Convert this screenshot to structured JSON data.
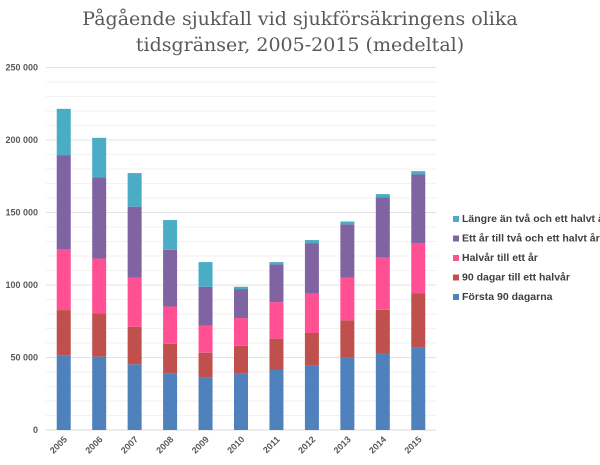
{
  "chart_data": {
    "type": "bar",
    "stacked": true,
    "title_lines": [
      "Pågående sjukfall vid sjukförsäkringens olika",
      "tidsgränser, 2005-2015 (medeltal)"
    ],
    "xlabel": "",
    "ylabel": "",
    "ylim": [
      0,
      250000
    ],
    "yticks": [
      0,
      50000,
      100000,
      150000,
      200000,
      250000
    ],
    "ytick_labels": [
      "0",
      "50 000",
      "100 000",
      "150 000",
      "200 000",
      "250 000"
    ],
    "grid": true,
    "legend_position": "right",
    "categories": [
      "2005",
      "2006",
      "2007",
      "2008",
      "2009",
      "2010",
      "2011",
      "2012",
      "2013",
      "2014",
      "2015"
    ],
    "series": [
      {
        "name": "Första 90 dagarna",
        "color": "#4f81bd",
        "values": [
          51200,
          50600,
          45300,
          38800,
          36100,
          38800,
          41400,
          44300,
          49900,
          53100,
          56800
        ]
      },
      {
        "name": "90 dagar till ett halvår",
        "color": "#c0504d",
        "values": [
          31500,
          29800,
          25900,
          20700,
          17200,
          19300,
          21600,
          22600,
          25700,
          29800,
          37600
        ]
      },
      {
        "name": "Halvår till ett år",
        "color": "#ff5093",
        "values": [
          42100,
          37900,
          34000,
          25700,
          18600,
          19100,
          25200,
          27100,
          29600,
          35900,
          34300
        ]
      },
      {
        "name": "Ett år till två och ett halvt år",
        "color": "#8064a2",
        "values": [
          64800,
          55900,
          48800,
          39100,
          26900,
          20000,
          26000,
          34900,
          36600,
          41600,
          47500
        ]
      },
      {
        "name": "Längre än två och ett halvt år",
        "color": "#4bacc6",
        "values": [
          31900,
          27300,
          23200,
          20500,
          17000,
          1600,
          1600,
          2100,
          2000,
          2300,
          2300
        ]
      }
    ]
  }
}
